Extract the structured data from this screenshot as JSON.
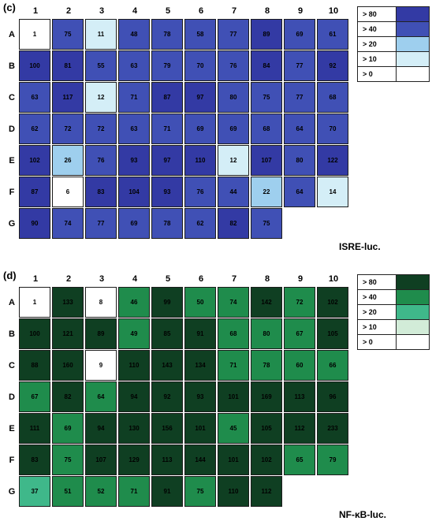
{
  "columns": [
    "1",
    "2",
    "3",
    "4",
    "5",
    "6",
    "7",
    "8",
    "9",
    "10"
  ],
  "rows": [
    "A",
    "B",
    "C",
    "D",
    "E",
    "F",
    "G"
  ],
  "panels": [
    {
      "id": "c",
      "label": "(c)",
      "title": "ISRE-luc.",
      "colors": {
        "gt80": "#333aa4",
        "gt40": "#4050b5",
        "gt20": "#9ecfee",
        "gt10": "#d4eef7",
        "gt0": "#ffffff"
      },
      "values": [
        [
          "1",
          "75",
          "11",
          "48",
          "78",
          "58",
          "77",
          "89",
          "69",
          "61"
        ],
        [
          "100",
          "81",
          "55",
          "63",
          "79",
          "70",
          "76",
          "84",
          "77",
          "92"
        ],
        [
          "63",
          "117",
          "12",
          "71",
          "87",
          "97",
          "80",
          "75",
          "77",
          "68"
        ],
        [
          "62",
          "72",
          "72",
          "63",
          "71",
          "69",
          "69",
          "68",
          "64",
          "70"
        ],
        [
          "102",
          "26",
          "76",
          "93",
          "97",
          "110",
          "12",
          "107",
          "80",
          "122"
        ],
        [
          "87",
          "6",
          "83",
          "104",
          "93",
          "76",
          "44",
          "22",
          "64",
          "14"
        ],
        [
          "90",
          "74",
          "77",
          "69",
          "78",
          "62",
          "82",
          "75",
          "",
          ""
        ]
      ],
      "legend": [
        {
          "label": "> 80",
          "color": "#333aa4"
        },
        {
          "label": "> 40",
          "color": "#4050b5"
        },
        {
          "label": "> 20",
          "color": "#9ecfee"
        },
        {
          "label": "> 10",
          "color": "#d4eef7"
        },
        {
          "label": "> 0",
          "color": "#ffffff"
        }
      ]
    },
    {
      "id": "d",
      "label": "(d)",
      "title": "NF-κB-luc.",
      "colors": {
        "gt80": "#0f3f22",
        "gt40": "#1f8c4c",
        "gt20": "#3fb88a",
        "gt10": "#d2ecd8",
        "gt0": "#ffffff"
      },
      "values": [
        [
          "1",
          "133",
          "8",
          "46",
          "99",
          "50",
          "74",
          "142",
          "72",
          "102"
        ],
        [
          "100",
          "121",
          "89",
          "49",
          "85",
          "91",
          "68",
          "80",
          "67",
          "105"
        ],
        [
          "88",
          "160",
          "9",
          "110",
          "143",
          "134",
          "71",
          "78",
          "60",
          "66"
        ],
        [
          "67",
          "82",
          "64",
          "94",
          "92",
          "93",
          "101",
          "169",
          "113",
          "96"
        ],
        [
          "111",
          "69",
          "94",
          "130",
          "156",
          "101",
          "45",
          "105",
          "112",
          "233"
        ],
        [
          "83",
          "75",
          "107",
          "129",
          "113",
          "144",
          "101",
          "102",
          "65",
          "79"
        ],
        [
          "37",
          "51",
          "52",
          "71",
          "91",
          "75",
          "110",
          "112",
          "",
          ""
        ]
      ],
      "legend": [
        {
          "label": "> 80",
          "color": "#0f3f22"
        },
        {
          "label": "> 40",
          "color": "#1f8c4c"
        },
        {
          "label": "> 20",
          "color": "#3fb88a"
        },
        {
          "label": "> 10",
          "color": "#d2ecd8"
        },
        {
          "label": "> 0",
          "color": "#ffffff"
        }
      ]
    }
  ]
}
